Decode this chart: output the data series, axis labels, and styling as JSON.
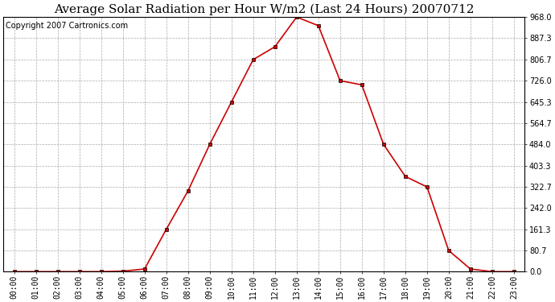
{
  "title": "Average Solar Radiation per Hour W/m2 (Last 24 Hours) 20070712",
  "copyright": "Copyright 2007 Cartronics.com",
  "hours": [
    "00:00",
    "01:00",
    "02:00",
    "03:00",
    "04:00",
    "05:00",
    "06:00",
    "07:00",
    "08:00",
    "09:00",
    "10:00",
    "11:00",
    "12:00",
    "13:00",
    "14:00",
    "15:00",
    "16:00",
    "17:00",
    "18:00",
    "19:00",
    "20:00",
    "21:00",
    "22:00",
    "23:00"
  ],
  "values": [
    0,
    0,
    0,
    0,
    0,
    2,
    10,
    161,
    307,
    484,
    645,
    806,
    855,
    968,
    935,
    726,
    710,
    484,
    362,
    322,
    80,
    10,
    0,
    0
  ],
  "line_color": "#cc0000",
  "marker_color": "#000000",
  "background_color": "#ffffff",
  "grid_color": "#aaaaaa",
  "ylim": [
    0,
    968.0
  ],
  "yticks": [
    0.0,
    80.7,
    161.3,
    242.0,
    322.7,
    403.3,
    484.0,
    564.7,
    645.3,
    726.0,
    806.7,
    887.3,
    968.0
  ],
  "ytick_labels": [
    "0.0",
    "80.7",
    "161.3",
    "242.0",
    "322.7",
    "403.3",
    "484.0",
    "564.7",
    "645.3",
    "726.0",
    "806.7",
    "887.3",
    "968.0"
  ],
  "title_fontsize": 11,
  "copyright_fontsize": 7,
  "tick_fontsize": 7,
  "figwidth": 6.9,
  "figheight": 3.75,
  "dpi": 100
}
